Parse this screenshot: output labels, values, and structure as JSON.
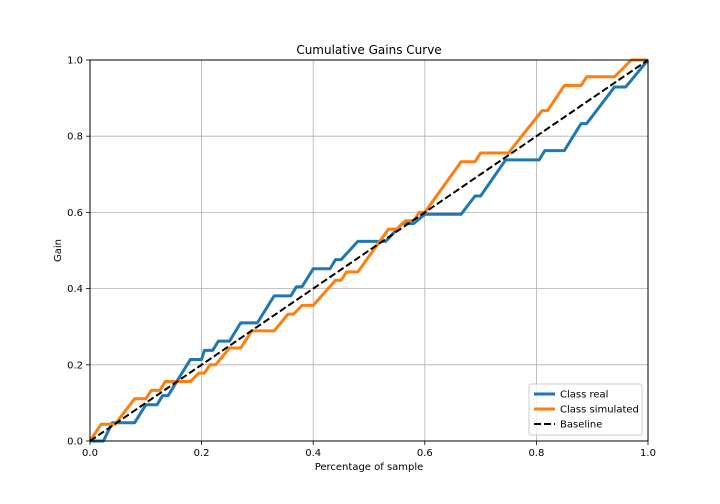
{
  "chart_data": {
    "type": "line",
    "title": "Cumulative Gains Curve",
    "xlabel": "Percentage of sample",
    "ylabel": "Gain",
    "xlim": [
      0.0,
      1.0
    ],
    "ylim": [
      0.0,
      1.0
    ],
    "xticks": [
      "0.0",
      "0.2",
      "0.4",
      "0.6",
      "0.8",
      "1.0"
    ],
    "yticks": [
      "0.0",
      "0.2",
      "0.4",
      "0.6",
      "0.8",
      "1.0"
    ],
    "grid": true,
    "legend_position": "lower-right",
    "series": [
      {
        "name": "Class real",
        "color": "#1f77b4",
        "style": "solid",
        "points": [
          [
            0.0,
            0.0
          ],
          [
            0.024,
            0.0
          ],
          [
            0.04,
            0.048
          ],
          [
            0.08,
            0.048
          ],
          [
            0.1,
            0.095
          ],
          [
            0.12,
            0.095
          ],
          [
            0.13,
            0.119
          ],
          [
            0.14,
            0.119
          ],
          [
            0.16,
            0.167
          ],
          [
            0.18,
            0.214
          ],
          [
            0.2,
            0.214
          ],
          [
            0.205,
            0.238
          ],
          [
            0.22,
            0.238
          ],
          [
            0.23,
            0.262
          ],
          [
            0.25,
            0.262
          ],
          [
            0.27,
            0.31
          ],
          [
            0.3,
            0.31
          ],
          [
            0.33,
            0.381
          ],
          [
            0.36,
            0.381
          ],
          [
            0.37,
            0.405
          ],
          [
            0.38,
            0.405
          ],
          [
            0.4,
            0.452
          ],
          [
            0.43,
            0.452
          ],
          [
            0.44,
            0.476
          ],
          [
            0.45,
            0.476
          ],
          [
            0.48,
            0.524
          ],
          [
            0.53,
            0.524
          ],
          [
            0.56,
            0.571
          ],
          [
            0.58,
            0.571
          ],
          [
            0.6,
            0.595
          ],
          [
            0.665,
            0.595
          ],
          [
            0.69,
            0.643
          ],
          [
            0.7,
            0.643
          ],
          [
            0.745,
            0.738
          ],
          [
            0.805,
            0.738
          ],
          [
            0.815,
            0.762
          ],
          [
            0.85,
            0.762
          ],
          [
            0.88,
            0.833
          ],
          [
            0.89,
            0.833
          ],
          [
            0.94,
            0.929
          ],
          [
            0.96,
            0.929
          ],
          [
            1.0,
            1.0
          ]
        ]
      },
      {
        "name": "Class simulated",
        "color": "#ff7f0e",
        "style": "solid",
        "points": [
          [
            0.0,
            0.0
          ],
          [
            0.02,
            0.044
          ],
          [
            0.045,
            0.044
          ],
          [
            0.08,
            0.111
          ],
          [
            0.1,
            0.111
          ],
          [
            0.11,
            0.133
          ],
          [
            0.125,
            0.133
          ],
          [
            0.135,
            0.156
          ],
          [
            0.18,
            0.156
          ],
          [
            0.195,
            0.178
          ],
          [
            0.205,
            0.178
          ],
          [
            0.215,
            0.2
          ],
          [
            0.225,
            0.2
          ],
          [
            0.25,
            0.244
          ],
          [
            0.27,
            0.244
          ],
          [
            0.29,
            0.289
          ],
          [
            0.33,
            0.289
          ],
          [
            0.355,
            0.333
          ],
          [
            0.365,
            0.333
          ],
          [
            0.38,
            0.356
          ],
          [
            0.4,
            0.356
          ],
          [
            0.44,
            0.422
          ],
          [
            0.45,
            0.422
          ],
          [
            0.46,
            0.444
          ],
          [
            0.48,
            0.444
          ],
          [
            0.535,
            0.556
          ],
          [
            0.55,
            0.556
          ],
          [
            0.565,
            0.578
          ],
          [
            0.58,
            0.578
          ],
          [
            0.59,
            0.6
          ],
          [
            0.6,
            0.6
          ],
          [
            0.665,
            0.733
          ],
          [
            0.69,
            0.733
          ],
          [
            0.7,
            0.756
          ],
          [
            0.75,
            0.756
          ],
          [
            0.81,
            0.867
          ],
          [
            0.82,
            0.867
          ],
          [
            0.85,
            0.933
          ],
          [
            0.88,
            0.933
          ],
          [
            0.89,
            0.956
          ],
          [
            0.94,
            0.956
          ],
          [
            0.97,
            1.0
          ],
          [
            1.0,
            1.0
          ]
        ]
      },
      {
        "name": "Baseline",
        "color": "#000000",
        "style": "dashed",
        "points": [
          [
            0.0,
            0.0
          ],
          [
            1.0,
            1.0
          ]
        ]
      }
    ]
  }
}
